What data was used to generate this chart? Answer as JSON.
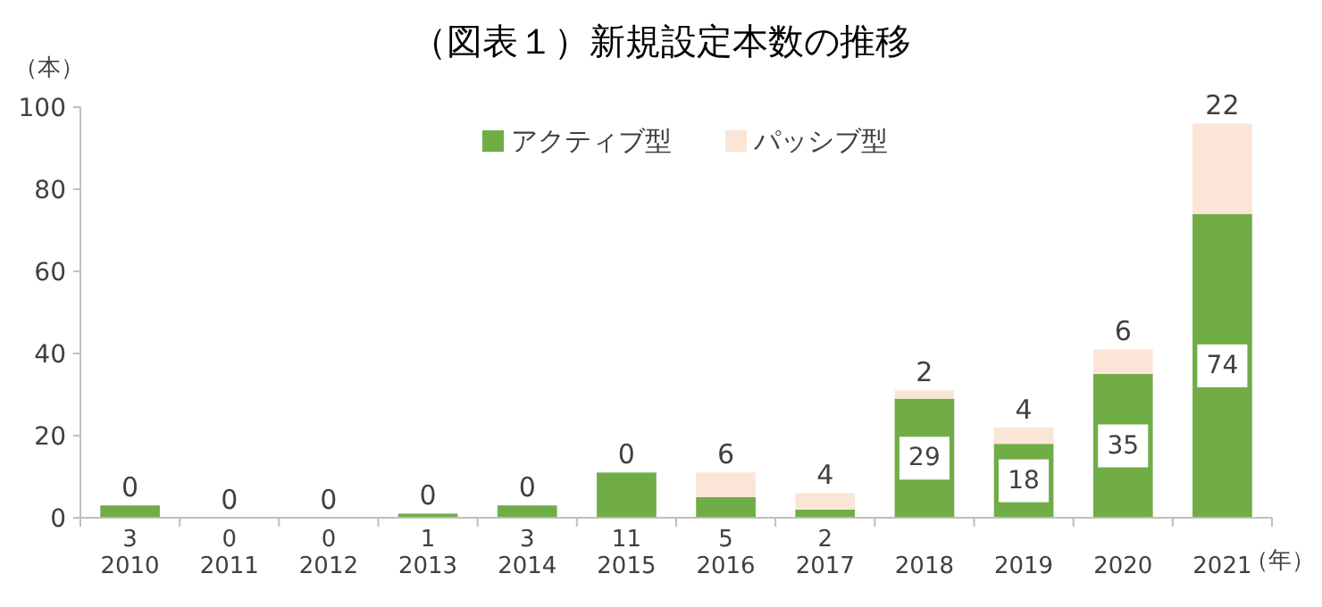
{
  "chart_data": {
    "type": "bar",
    "title": "（図表１）新規設定本数の推移",
    "ylabel": "（本）",
    "xlabel": "（年）",
    "categories": [
      "2010",
      "2011",
      "2012",
      "2013",
      "2014",
      "2015",
      "2016",
      "2017",
      "2018",
      "2019",
      "2020",
      "2021"
    ],
    "series": [
      {
        "name": "アクティブ型",
        "color": "#70ad47",
        "values": [
          3,
          0,
          0,
          1,
          3,
          11,
          5,
          2,
          29,
          18,
          35,
          74
        ]
      },
      {
        "name": "パッシブ型",
        "color": "#fbe5d6",
        "values": [
          0,
          0,
          0,
          0,
          0,
          0,
          6,
          4,
          2,
          4,
          6,
          22
        ]
      }
    ],
    "stacked": true,
    "ylim": [
      0,
      100
    ],
    "yticks": [
      0,
      20,
      40,
      60,
      80,
      100
    ],
    "data_labels": true,
    "legend": "top"
  }
}
